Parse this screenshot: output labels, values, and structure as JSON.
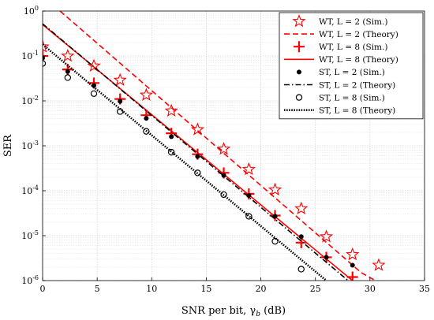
{
  "chart_data": {
    "type": "line",
    "xlabel": "SNR per bit, γ_b (dB)",
    "ylabel": "SER",
    "xlim": [
      0,
      35
    ],
    "ylim": [
      1e-06,
      1
    ],
    "yscale": "log",
    "grid": true,
    "legend_position": "top-right",
    "x_ticks": [
      "0",
      "5",
      "10",
      "15",
      "20",
      "25",
      "30",
      "35"
    ],
    "y_ticks": [
      "10^-6",
      "10^-5",
      "10^-4",
      "10^-3",
      "10^-2",
      "10^-1",
      "10^0"
    ],
    "colors": {
      "red": "#ff0000",
      "black": "#000000"
    },
    "series": [
      {
        "name": "WT, L = 2 (Sim.)",
        "style": "markers",
        "marker": "star",
        "color": "#ff0000",
        "points": [
          [
            0,
            0.16
          ],
          [
            2.3,
            0.1
          ],
          [
            4.7,
            0.06
          ],
          [
            7.1,
            0.029
          ],
          [
            9.5,
            0.0135
          ],
          [
            11.8,
            0.006
          ],
          [
            14.2,
            0.0023
          ],
          [
            16.6,
            0.00085
          ],
          [
            18.9,
            0.0003
          ],
          [
            21.3,
            0.000105
          ],
          [
            23.7,
            4e-05
          ],
          [
            26.0,
            9.5e-06
          ],
          [
            28.4,
            3.8e-06
          ],
          [
            30.8,
            2.2e-06
          ]
        ]
      },
      {
        "name": "WT, L = 2 (Theory)",
        "style": "dashed",
        "color": "#ff0000",
        "points": [
          [
            1.6,
            1.0
          ],
          [
            29.2,
            1.5e-06
          ],
          [
            30.5,
            1e-06
          ]
        ]
      },
      {
        "name": "WT, L = 8 (Sim.)",
        "style": "markers",
        "marker": "plus",
        "color": "#ff0000",
        "points": [
          [
            0,
            0.1
          ],
          [
            2.3,
            0.05
          ],
          [
            4.7,
            0.025
          ],
          [
            7.1,
            0.011
          ],
          [
            9.5,
            0.0048
          ],
          [
            11.8,
            0.0019
          ],
          [
            14.2,
            0.00065
          ],
          [
            16.6,
            0.00025
          ],
          [
            18.9,
            8.5e-05
          ],
          [
            21.3,
            2.8e-05
          ],
          [
            23.7,
            7e-06
          ],
          [
            26.0,
            3.3e-06
          ],
          [
            28.4,
            1.2e-06
          ]
        ]
      },
      {
        "name": "WT, L = 8 (Theory)",
        "style": "solid",
        "color": "#ff0000",
        "points": [
          [
            0,
            0.5
          ],
          [
            28.4,
            1e-06
          ]
        ]
      },
      {
        "name": "ST,  L = 2 (Sim.)",
        "style": "markers",
        "marker": "dot",
        "color": "#000000",
        "points": [
          [
            0,
            0.09
          ],
          [
            2.3,
            0.045
          ],
          [
            4.7,
            0.022
          ],
          [
            7.1,
            0.0098
          ],
          [
            9.5,
            0.0041
          ],
          [
            11.8,
            0.0016
          ],
          [
            14.2,
            0.00058
          ],
          [
            16.6,
            0.00022
          ],
          [
            18.9,
            7.8e-05
          ],
          [
            21.3,
            2.7e-05
          ],
          [
            23.7,
            9.5e-06
          ],
          [
            26.0,
            3.3e-06
          ],
          [
            28.4,
            2.2e-06
          ]
        ]
      },
      {
        "name": "ST,  L = 2 (Theory)",
        "style": "dashdot",
        "color": "#000000",
        "points": [
          [
            0,
            0.52
          ],
          [
            28.0,
            1e-06
          ]
        ]
      },
      {
        "name": "ST,  L = 8 (Sim.)",
        "style": "markers",
        "marker": "circle",
        "color": "#000000",
        "points": [
          [
            0,
            0.068
          ],
          [
            2.3,
            0.033
          ],
          [
            4.7,
            0.0145
          ],
          [
            7.1,
            0.0058
          ],
          [
            9.5,
            0.0021
          ],
          [
            11.8,
            0.00072
          ],
          [
            14.2,
            0.00025
          ],
          [
            16.6,
            8.2e-05
          ],
          [
            18.9,
            2.7e-05
          ],
          [
            21.3,
            7.5e-06
          ],
          [
            23.7,
            1.8e-06
          ]
        ]
      },
      {
        "name": "ST,  L = 8 (Theory)",
        "style": "dotted",
        "color": "#000000",
        "points": [
          [
            0,
            0.18
          ],
          [
            26.0,
            1e-06
          ]
        ]
      }
    ]
  }
}
